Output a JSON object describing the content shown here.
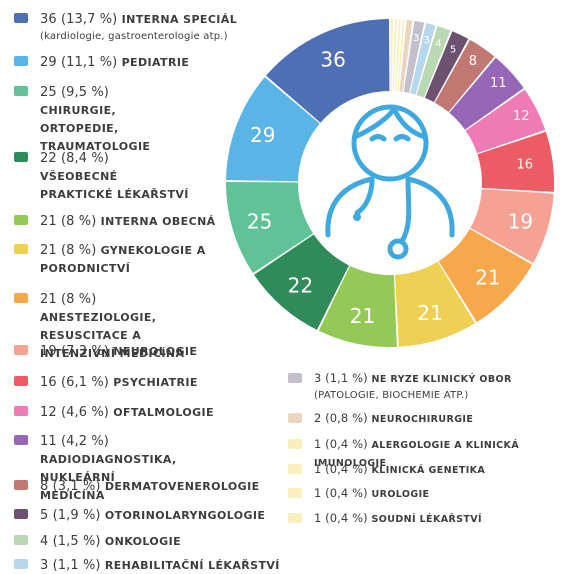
{
  "chart_data": {
    "type": "pie",
    "donut": true,
    "center_icon": "doctor-icon",
    "slices": [
      {
        "value": 36,
        "count": "36",
        "percent": "(13,7 %)",
        "label": "INTERNA SPECIÁL",
        "note": "(kardiologie, gastroenterologie atp.)",
        "color": "#4f6fb5",
        "slice_text": "36"
      },
      {
        "value": 29,
        "count": "29",
        "percent": "(11,1 %)",
        "label": "PEDIATRIE",
        "note": "",
        "color": "#5ab4e6",
        "slice_text": "29"
      },
      {
        "value": 25,
        "count": "25",
        "percent": "(9,5 %)",
        "label": "CHIRURGIE, ORTOPEDIE, TRAUMATOLOGIE",
        "note": "",
        "color": "#61c295",
        "slice_text": "25"
      },
      {
        "value": 22,
        "count": "22",
        "percent": "(8,4 %)",
        "label": "VŠEOBECNÉ PRAKTICKÉ LÉKAŘSTVÍ",
        "note": "",
        "color": "#2f8c5a",
        "slice_text": "22"
      },
      {
        "value": 21,
        "count": "21",
        "percent": "(8 %)",
        "label": "INTERNA OBECNÁ",
        "note": "",
        "color": "#95c957",
        "slice_text": "21"
      },
      {
        "value": 21,
        "count": "21",
        "percent": "(8 %)",
        "label": "GYNEKOLOGIE A PORODNICTVÍ",
        "note": "",
        "color": "#eed154",
        "slice_text": "21"
      },
      {
        "value": 21,
        "count": "21",
        "percent": "(8 %)",
        "label": "ANESTEZIOLOGIE, RESUSCITACE A INTENZIVNÍ MEDICÍNA",
        "note": "",
        "color": "#f6a84b",
        "slice_text": "21"
      },
      {
        "value": 19,
        "count": "19",
        "percent": "(7,3 %)",
        "label": "NEUROLOGIE",
        "note": "",
        "color": "#f5a294",
        "slice_text": "19"
      },
      {
        "value": 16,
        "count": "16",
        "percent": "(6,1 %)",
        "label": "PSYCHIATRIE",
        "note": "",
        "color": "#ec5c64",
        "slice_text": "16"
      },
      {
        "value": 12,
        "count": "12",
        "percent": "(4,6 %)",
        "label": "OFTALMOLOGIE",
        "note": "",
        "color": "#ee7bb4",
        "slice_text": "12"
      },
      {
        "value": 11,
        "count": "11",
        "percent": "(4,2 %)",
        "label": "RADIODIAGNOSTIKA, NUKLEÁRNÍ MEDICÍNA",
        "note": "",
        "color": "#9567b6",
        "slice_text": "11"
      },
      {
        "value": 8,
        "count": "8",
        "percent": "(3,1 %)",
        "label": "DERMATOVENEROLOGIE",
        "note": "",
        "color": "#c17872",
        "slice_text": "8"
      },
      {
        "value": 5,
        "count": "5",
        "percent": "(1,9 %)",
        "label": "OTORINOLARYNGOLOGIE",
        "note": "",
        "color": "#6c526e",
        "slice_text": "5"
      },
      {
        "value": 4,
        "count": "4",
        "percent": "(1,5 %)",
        "label": "ONKOLOGIE",
        "note": "",
        "color": "#b8d9b1",
        "slice_text": "4"
      },
      {
        "value": 3,
        "count": "3",
        "percent": "(1,1 %)",
        "label": "REHABILITAČNÍ LÉKAŘSTVÍ",
        "note": "",
        "color": "#b7d7ec",
        "slice_text": "3"
      },
      {
        "value": 3,
        "count": "3",
        "percent": "(1,1 %)",
        "label": "NE RYZE KLINICKÝ OBOR",
        "note": "(PATOLOGIE, BIOCHEMIE ATP.)",
        "color": "#c3bfcc",
        "slice_text": "3"
      },
      {
        "value": 2,
        "count": "2",
        "percent": "(0,8 %)",
        "label": "NEUROCHIRURGIE",
        "note": "",
        "color": "#ead6bf",
        "slice_text": ""
      },
      {
        "value": 1,
        "count": "1",
        "percent": "(0,4 %)",
        "label": "ALERGOLOGIE A KLINICKÁ IMUNOLOGIE",
        "note": "",
        "color": "#f8efbd",
        "slice_text": ""
      },
      {
        "value": 1,
        "count": "1",
        "percent": "(0,4 %)",
        "label": "KLINICKÁ GENETIKA",
        "note": "",
        "color": "#f8efbd",
        "slice_text": ""
      },
      {
        "value": 1,
        "count": "1",
        "percent": "(0,4 %)",
        "label": "UROLOGIE",
        "note": "",
        "color": "#f8efbd",
        "slice_text": ""
      },
      {
        "value": 1,
        "count": "1",
        "percent": "(0,4 %)",
        "label": "SOUDNÍ LÉKAŘSTVÍ",
        "note": "",
        "color": "#f8efbd",
        "slice_text": ""
      }
    ]
  }
}
